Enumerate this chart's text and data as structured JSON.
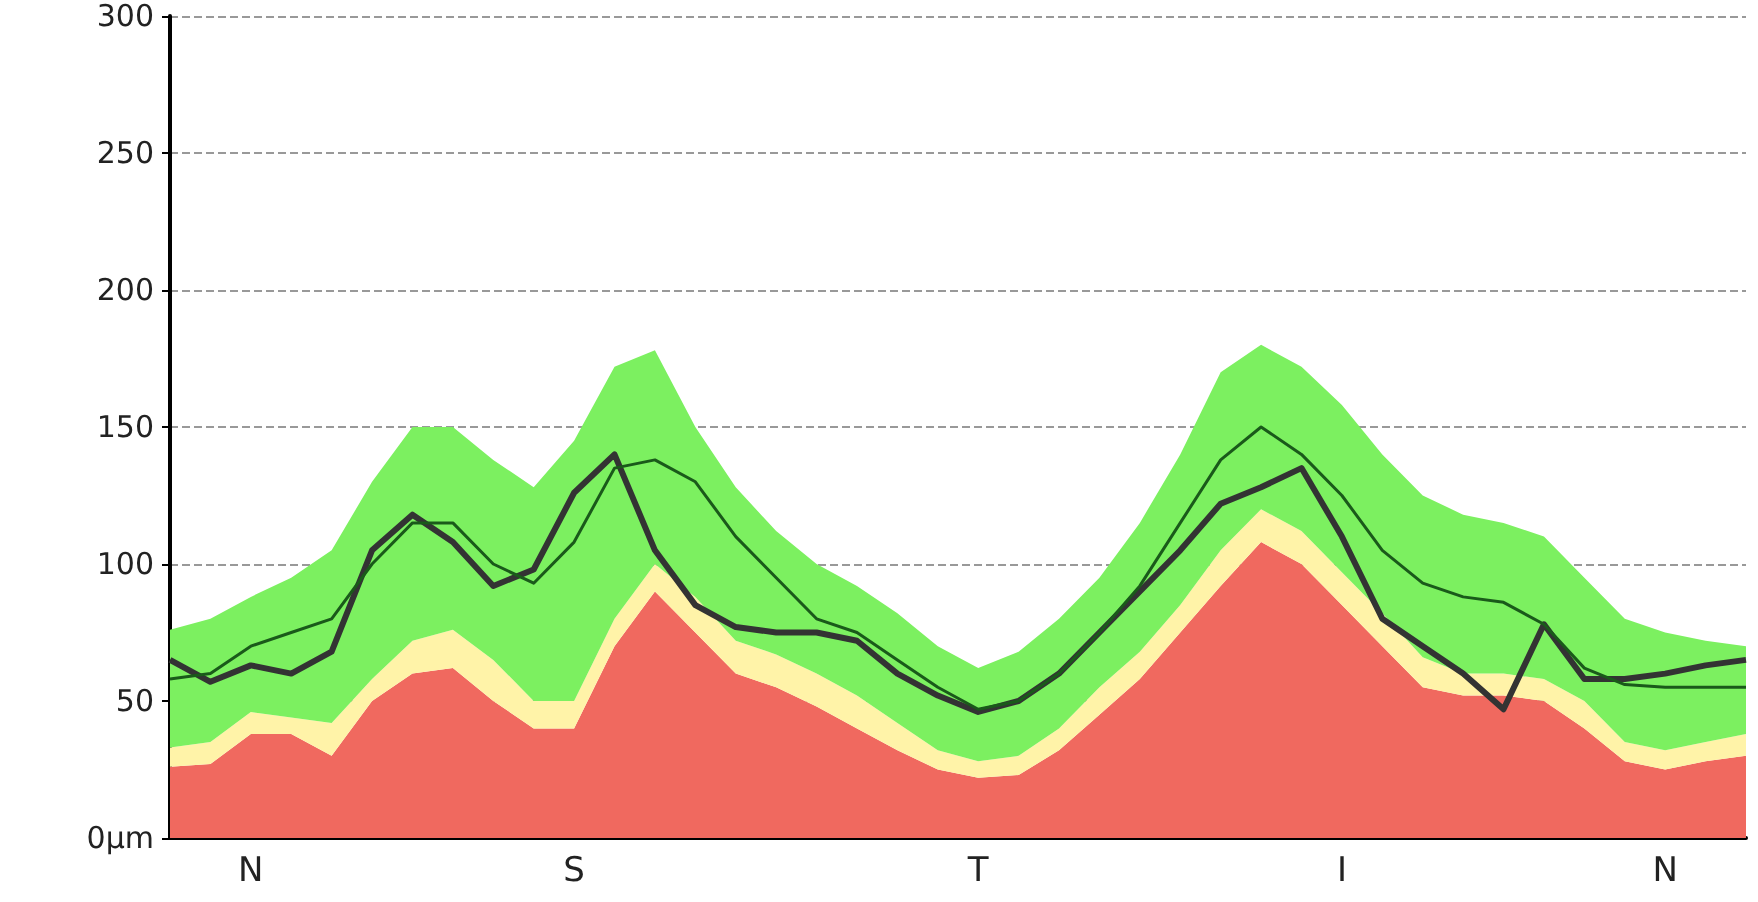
{
  "chart_data": {
    "type": "area",
    "stacked": true,
    "marker": "none",
    "grid": "y",
    "categories": [
      null,
      null,
      "N",
      null,
      null,
      null,
      null,
      null,
      null,
      null,
      "S",
      null,
      null,
      null,
      null,
      null,
      null,
      null,
      null,
      null,
      "T",
      null,
      null,
      null,
      null,
      null,
      null,
      null,
      null,
      "I",
      null,
      null,
      null,
      null,
      null,
      null,
      null,
      "N",
      null,
      null
    ],
    "ylim": [
      0,
      300
    ],
    "yticks": [
      {
        "value": 0,
        "label": "0µm"
      },
      50,
      100,
      150,
      200,
      250,
      300
    ],
    "series": [
      {
        "color": "#f0695f",
        "values": [
          26,
          27,
          38,
          38,
          30,
          50,
          60,
          62,
          50,
          40,
          40,
          70,
          90,
          75,
          60,
          55,
          48,
          40,
          32,
          25,
          22,
          23,
          32,
          45,
          58,
          75,
          92,
          108,
          100,
          85,
          70,
          55,
          52,
          52,
          50,
          40,
          28,
          25,
          28,
          30
        ]
      },
      {
        "color": "#fff3a8",
        "values": [
          7,
          8,
          8,
          6,
          12,
          8,
          12,
          14,
          15,
          10,
          10,
          10,
          10,
          13,
          12,
          12,
          12,
          12,
          10,
          7,
          6,
          7,
          8,
          10,
          10,
          10,
          13,
          12,
          12,
          12,
          12,
          11,
          8,
          8,
          8,
          10,
          7,
          7,
          7,
          8
        ]
      },
      {
        "color": "#7cf060",
        "values": [
          43,
          45,
          42,
          51,
          63,
          72,
          78,
          74,
          73,
          78,
          95,
          92,
          78,
          62,
          56,
          45,
          40,
          40,
          40,
          38,
          34,
          38,
          40,
          40,
          47,
          55,
          65,
          60,
          60,
          61,
          58,
          59,
          58,
          55,
          52,
          45,
          45,
          43,
          37,
          32
        ]
      },
      {
        "type": "line",
        "color": "#333333",
        "values": [
          65,
          57,
          63,
          60,
          68,
          105,
          118,
          108,
          92,
          98,
          126,
          140,
          105,
          85,
          77,
          75,
          75,
          72,
          60,
          52,
          46,
          50,
          60,
          75,
          90,
          105,
          122,
          128,
          135,
          110,
          80,
          70,
          60,
          47,
          78,
          58,
          58,
          60,
          63,
          65
        ]
      },
      {
        "type": "line",
        "color": "#1a5a1a",
        "values": [
          58,
          60,
          70,
          75,
          80,
          100,
          115,
          115,
          100,
          93,
          108,
          135,
          138,
          130,
          110,
          95,
          80,
          75,
          65,
          55,
          47,
          50,
          60,
          75,
          92,
          115,
          138,
          150,
          140,
          125,
          105,
          93,
          88,
          86,
          78,
          62,
          56,
          55,
          55,
          55
        ]
      }
    ]
  }
}
